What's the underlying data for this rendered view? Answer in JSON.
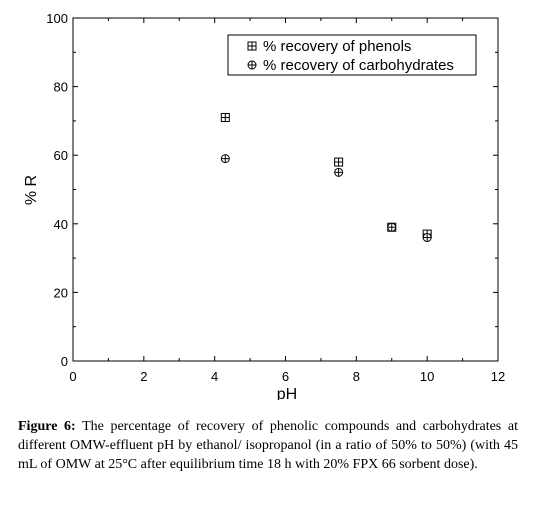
{
  "chart_data": {
    "type": "scatter",
    "xlabel": "pH",
    "ylabel": "% R",
    "xlim": [
      0,
      12
    ],
    "ylim": [
      0,
      100
    ],
    "xticks": [
      "0",
      "2",
      "4",
      "6",
      "8",
      "10",
      "12"
    ],
    "yticks": [
      "0",
      "20",
      "40",
      "60",
      "80",
      "100"
    ],
    "legend_position": "top-right",
    "series": [
      {
        "name": "% recovery of phenols",
        "marker": "boxplus",
        "points": [
          {
            "x": 4.3,
            "y": 71
          },
          {
            "x": 7.5,
            "y": 58
          },
          {
            "x": 9.0,
            "y": 39
          },
          {
            "x": 10.0,
            "y": 37
          }
        ]
      },
      {
        "name": "% recovery of carbohydrates",
        "marker": "circleplus",
        "points": [
          {
            "x": 4.3,
            "y": 59
          },
          {
            "x": 7.5,
            "y": 55
          },
          {
            "x": 9.0,
            "y": 39
          },
          {
            "x": 10.0,
            "y": 36
          }
        ]
      }
    ]
  },
  "caption": {
    "label": "Figure 6:",
    "text": " The percentage of recovery of phenolic compounds and carbohydrates at different OMW-effluent pH by ethanol/ isopropanol (in a ratio of 50% to 50%) (with 45 mL of OMW at 25°C after equilibrium time 18 h with 20% FPX 66 sorbent dose)."
  }
}
